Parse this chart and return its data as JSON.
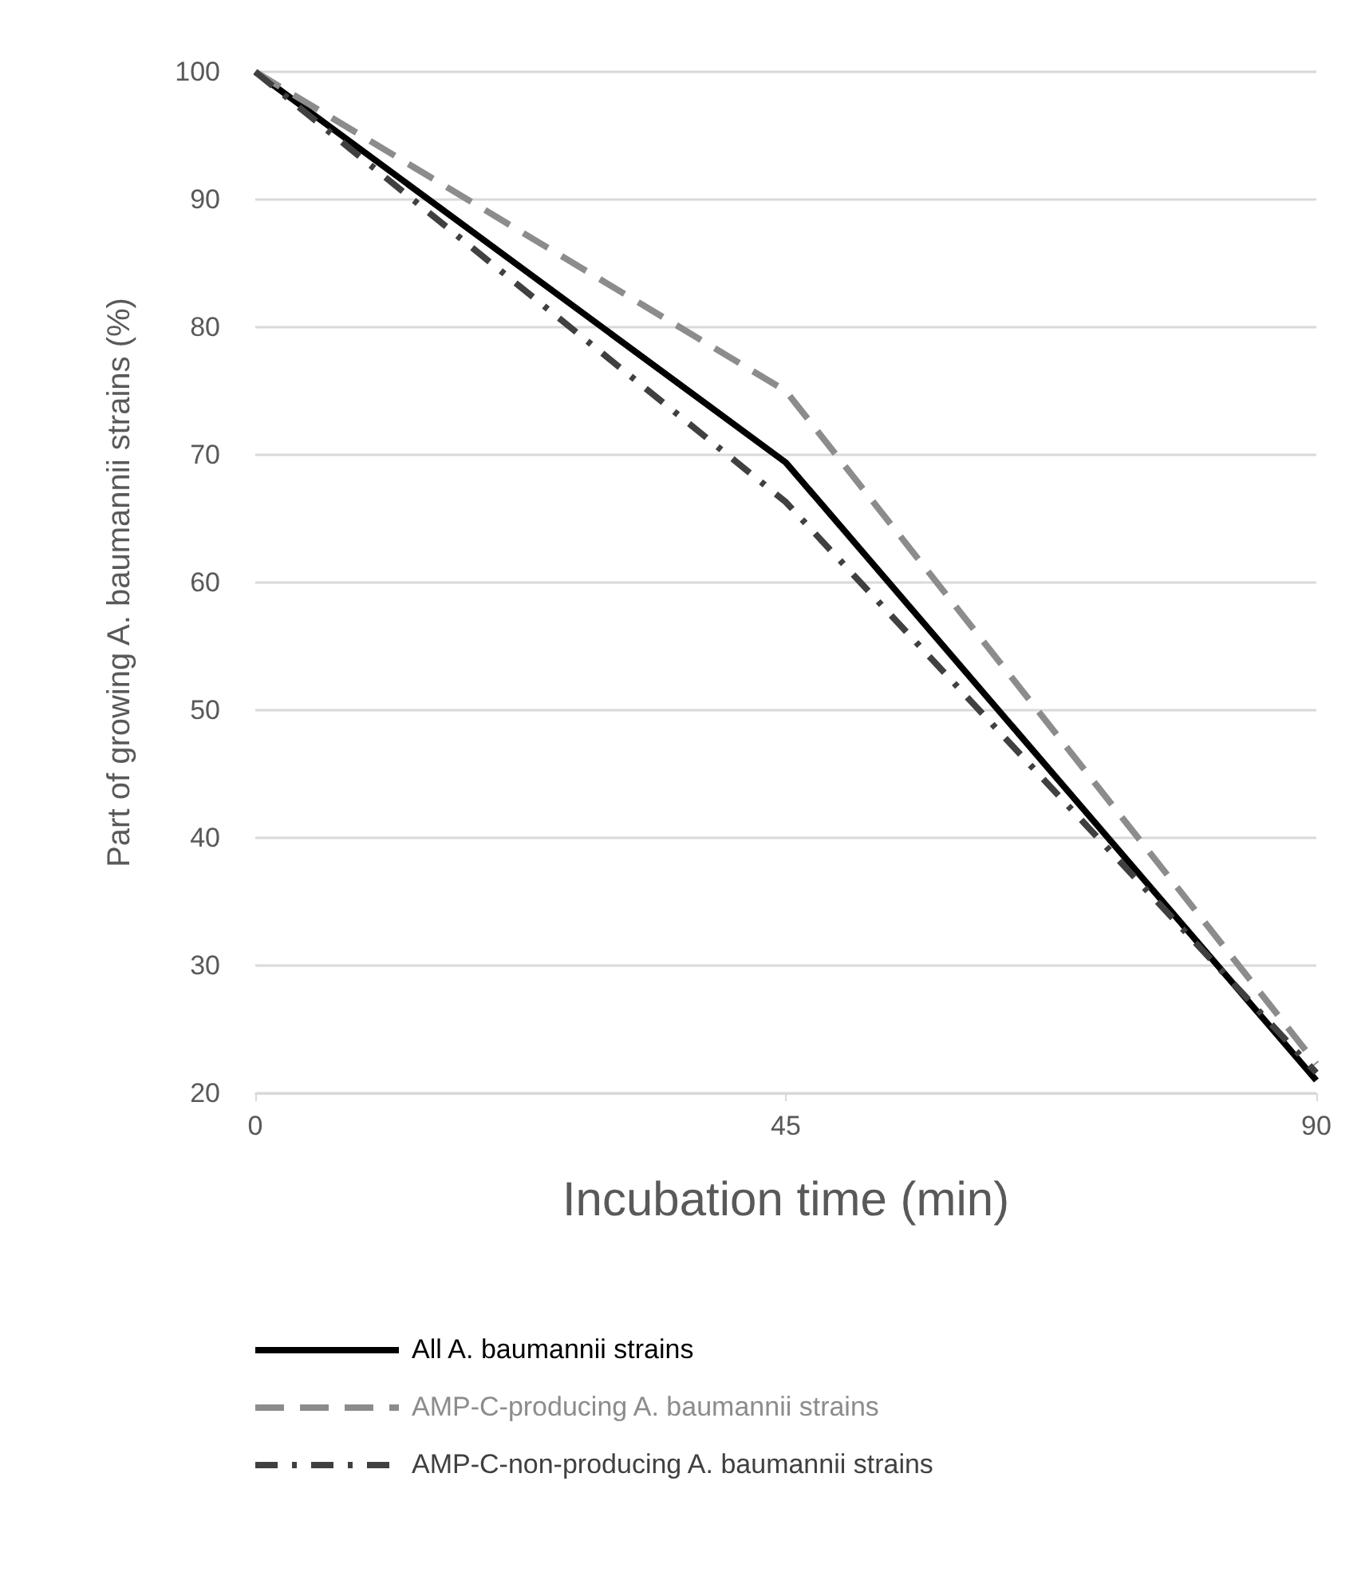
{
  "chart_data": {
    "type": "line",
    "xlabel": "Incubation time (min)",
    "ylabel": "Part of growing A. baumannii strains (%)",
    "x": [
      0,
      45,
      90
    ],
    "xlim": [
      0,
      90
    ],
    "xticks": [
      0,
      45,
      90
    ],
    "ylim": [
      20,
      100
    ],
    "yticks": [
      20,
      30,
      40,
      50,
      60,
      70,
      80,
      90,
      100
    ],
    "grid": "y",
    "legend": "bottom",
    "marker": "none",
    "series": [
      {
        "name": "All A. baumannii strains",
        "color": "#000000",
        "line_style": "solid",
        "values": [
          100,
          69.4,
          21
        ]
      },
      {
        "name": "AMP-C-producing A. baumannii strains",
        "color": "#8c8c8c",
        "line_style": "dashed",
        "values": [
          100,
          75,
          22.3
        ]
      },
      {
        "name": "AMP-C-non-producing A. baumannii strains",
        "color": "#404040",
        "line_style": "dotted",
        "values": [
          100,
          66.3,
          21.6
        ]
      }
    ]
  }
}
